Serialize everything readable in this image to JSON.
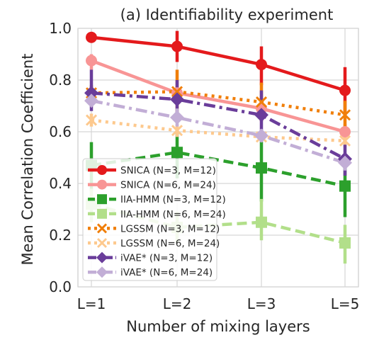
{
  "chart_data": {
    "type": "line",
    "title": "(a) Identifiability experiment",
    "xlabel": "Number of mixing layers",
    "ylabel": "Mean Correlation Coefficient",
    "categories": [
      "L=1",
      "L=2",
      "L=3",
      "L=5"
    ],
    "ylim": [
      0.0,
      1.0
    ],
    "yticks": [
      "0.0",
      "0.2",
      "0.4",
      "0.6",
      "0.8",
      "1.0"
    ],
    "grid": true,
    "legend_position": "lower-left",
    "series": [
      {
        "name": "SNICA (N=3, M=12)",
        "color": "#e41a1c",
        "dash": "solid",
        "marker": "circle",
        "values": [
          0.965,
          0.93,
          0.86,
          0.76
        ],
        "lower": [
          0.95,
          0.87,
          0.78,
          0.67
        ],
        "upper": [
          0.98,
          0.99,
          0.93,
          0.85
        ]
      },
      {
        "name": "SNICA (N=6, M=24)",
        "color": "#f89595",
        "dash": "solid",
        "marker": "circle",
        "values": [
          0.875,
          0.75,
          0.69,
          0.6
        ],
        "lower": [
          0.84,
          0.73,
          0.67,
          0.57
        ],
        "upper": [
          0.9,
          0.77,
          0.71,
          0.63
        ]
      },
      {
        "name": "IIA-HMM (N=3, M=12)",
        "color": "#2ca02c",
        "dash": "dashed",
        "marker": "square",
        "values": [
          0.47,
          0.52,
          0.46,
          0.39
        ],
        "lower": [
          0.37,
          0.42,
          0.33,
          0.27
        ],
        "upper": [
          0.56,
          0.6,
          0.59,
          0.51
        ]
      },
      {
        "name": "IIA-HMM (N=6, M=24)",
        "color": "#b2df8a",
        "dash": "dashed",
        "marker": "square",
        "values": [
          0.32,
          0.23,
          0.25,
          0.17
        ],
        "lower": [
          0.25,
          0.17,
          0.18,
          0.09
        ],
        "upper": [
          0.38,
          0.29,
          0.34,
          0.24
        ]
      },
      {
        "name": "LGSSM (N=3, M=12)",
        "color": "#f07f0a",
        "dash": "dotted",
        "marker": "x",
        "values": [
          0.75,
          0.755,
          0.715,
          0.665
        ],
        "lower": [
          0.72,
          0.65,
          0.64,
          0.58
        ],
        "upper": [
          0.78,
          0.84,
          0.79,
          0.72
        ]
      },
      {
        "name": "LGSSM (N=6, M=24)",
        "color": "#fdc98e",
        "dash": "dotted",
        "marker": "x",
        "values": [
          0.645,
          0.605,
          0.58,
          0.565
        ],
        "lower": [
          0.62,
          0.58,
          0.56,
          0.54
        ],
        "upper": [
          0.67,
          0.63,
          0.6,
          0.59
        ]
      },
      {
        "name": "iVAE* (N=3, M=12)",
        "color": "#6a3d9a",
        "dash": "dashdot",
        "marker": "diamond",
        "values": [
          0.75,
          0.725,
          0.665,
          0.495
        ],
        "lower": [
          0.68,
          0.64,
          0.57,
          0.43
        ],
        "upper": [
          0.84,
          0.8,
          0.76,
          0.55
        ]
      },
      {
        "name": "iVAE* (N=6, M=24)",
        "color": "#c2aed6",
        "dash": "dashdot",
        "marker": "diamond",
        "values": [
          0.72,
          0.655,
          0.585,
          0.48
        ],
        "lower": [
          0.7,
          0.62,
          0.56,
          0.45
        ],
        "upper": [
          0.74,
          0.69,
          0.61,
          0.51
        ]
      }
    ]
  }
}
